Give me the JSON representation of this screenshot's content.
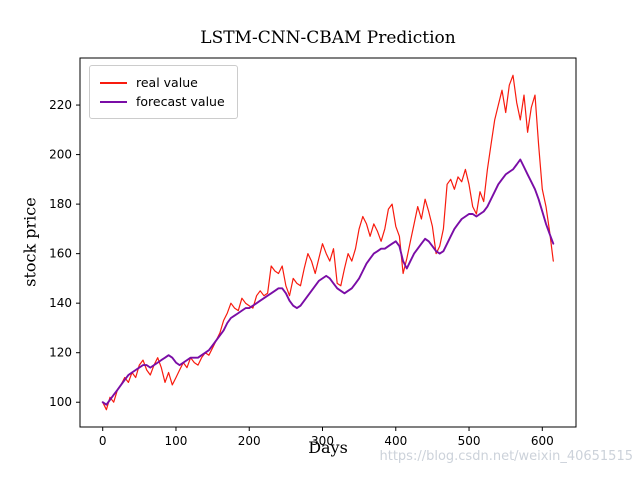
{
  "title": "LSTM-CNN-CBAM Prediction",
  "watermark": "https://blog.csdn.net/weixin_40651515",
  "chart_data": {
    "type": "line",
    "title": "LSTM-CNN-CBAM Prediction",
    "xlabel": "Days",
    "ylabel": "stock price",
    "xlim": [
      -31,
      646
    ],
    "ylim": [
      90,
      239
    ],
    "x_ticks": [
      0,
      100,
      200,
      300,
      400,
      500,
      600
    ],
    "y_ticks": [
      100,
      120,
      140,
      160,
      180,
      200,
      220
    ],
    "grid": false,
    "legend_position": "upper left",
    "x": [
      0,
      5,
      10,
      15,
      20,
      25,
      30,
      35,
      40,
      45,
      50,
      55,
      60,
      65,
      70,
      75,
      80,
      85,
      90,
      95,
      100,
      105,
      110,
      115,
      120,
      125,
      130,
      135,
      140,
      145,
      150,
      155,
      160,
      165,
      170,
      175,
      180,
      185,
      190,
      195,
      200,
      205,
      210,
      215,
      220,
      225,
      230,
      235,
      240,
      245,
      250,
      255,
      260,
      265,
      270,
      275,
      280,
      285,
      290,
      295,
      300,
      305,
      310,
      315,
      320,
      325,
      330,
      335,
      340,
      345,
      350,
      355,
      360,
      365,
      370,
      375,
      380,
      385,
      390,
      395,
      400,
      405,
      410,
      415,
      420,
      425,
      430,
      435,
      440,
      445,
      450,
      455,
      460,
      465,
      470,
      475,
      480,
      485,
      490,
      495,
      500,
      505,
      510,
      515,
      520,
      525,
      530,
      535,
      540,
      545,
      550,
      555,
      560,
      565,
      570,
      575,
      580,
      585,
      590,
      595,
      600,
      605,
      610,
      615
    ],
    "series": [
      {
        "name": "real value",
        "color": "#f81b0e",
        "width": 1.2,
        "values": [
          100,
          97,
          102,
          100,
          105,
          107,
          110,
          108,
          112,
          110,
          115,
          117,
          113,
          111,
          115,
          118,
          114,
          108,
          112,
          107,
          110,
          113,
          116,
          114,
          118,
          116,
          115,
          118,
          120,
          119,
          122,
          125,
          128,
          133,
          136,
          140,
          138,
          137,
          142,
          140,
          139,
          138,
          143,
          145,
          143,
          144,
          155,
          153,
          152,
          155,
          147,
          143,
          150,
          148,
          147,
          154,
          160,
          157,
          152,
          158,
          164,
          160,
          157,
          162,
          148,
          147,
          154,
          160,
          157,
          162,
          170,
          175,
          172,
          167,
          172,
          169,
          165,
          170,
          178,
          180,
          171,
          167,
          152,
          158,
          165,
          172,
          179,
          174,
          182,
          177,
          171,
          160,
          163,
          170,
          188,
          190,
          186,
          191,
          189,
          194,
          188,
          179,
          176,
          185,
          181,
          194,
          204,
          214,
          220,
          226,
          217,
          228,
          232,
          221,
          214,
          224,
          209,
          219,
          224,
          204,
          186,
          179,
          169,
          157
        ]
      },
      {
        "name": "forecast value",
        "color": "#7a0da6",
        "width": 1.9,
        "values": [
          100,
          99,
          101,
          103,
          105,
          107,
          109,
          111,
          112,
          113,
          114,
          115,
          115,
          114,
          115,
          116,
          117,
          118,
          119,
          118,
          116,
          115,
          116,
          117,
          118,
          118,
          118,
          119,
          120,
          121,
          123,
          125,
          127,
          129,
          132,
          134,
          135,
          136,
          137,
          138,
          138,
          139,
          140,
          141,
          142,
          143,
          144,
          145,
          146,
          146,
          144,
          141,
          139,
          138,
          139,
          141,
          143,
          145,
          147,
          149,
          150,
          151,
          150,
          148,
          146,
          145,
          144,
          145,
          146,
          148,
          150,
          153,
          156,
          158,
          160,
          161,
          162,
          162,
          163,
          164,
          165,
          163,
          157,
          154,
          157,
          160,
          162,
          164,
          166,
          165,
          163,
          161,
          160,
          161,
          164,
          167,
          170,
          172,
          174,
          175,
          176,
          176,
          175,
          176,
          177,
          179,
          182,
          185,
          188,
          190,
          192,
          193,
          194,
          196,
          198,
          195,
          192,
          189,
          186,
          182,
          177,
          172,
          168,
          164
        ]
      }
    ]
  }
}
